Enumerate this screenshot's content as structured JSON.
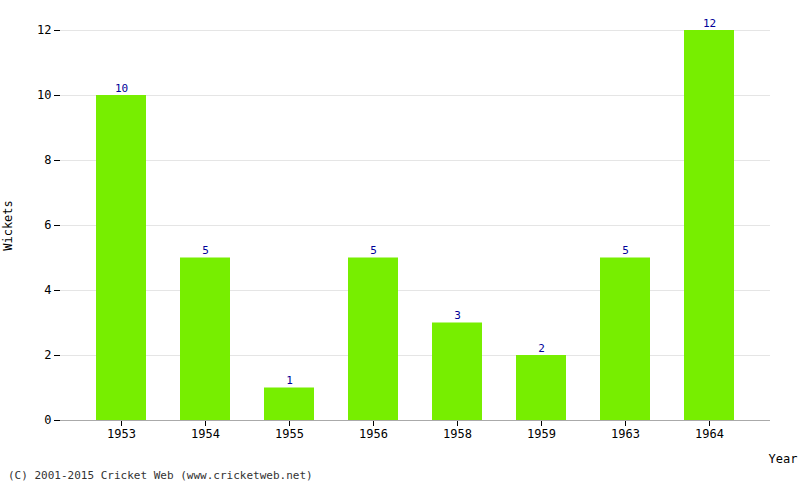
{
  "chart_data": {
    "type": "bar",
    "categories": [
      "1953",
      "1954",
      "1955",
      "1956",
      "1958",
      "1959",
      "1963",
      "1964"
    ],
    "values": [
      10,
      5,
      1,
      5,
      3,
      2,
      5,
      12
    ],
    "color": "#77ee00",
    "xlabel": "Year",
    "ylabel": "Wickets",
    "ylim": [
      0,
      12
    ],
    "yticks": [
      0,
      2,
      4,
      6,
      8,
      10,
      12
    ],
    "grid": true,
    "data_labels": true,
    "caption": "(C) 2001-2015 Cricket Web (www.cricketweb.net)"
  }
}
